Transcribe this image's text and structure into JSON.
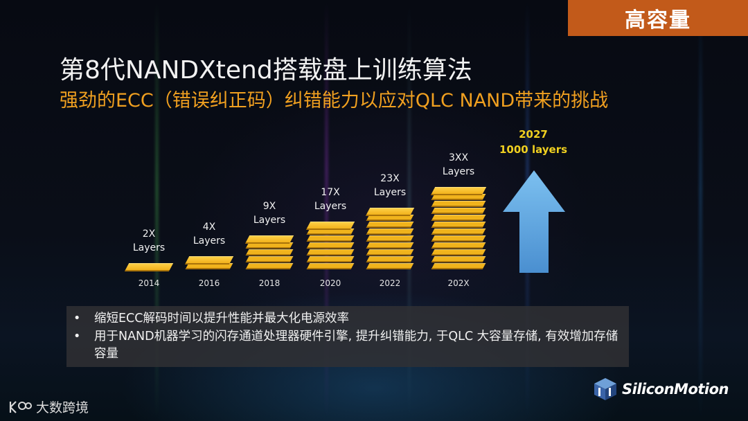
{
  "tag": {
    "text": "高容量"
  },
  "title": "第8代NANDXtend搭载盘上训练算法",
  "subtitle": "强劲的ECC（错误纠正码）纠错能力以应对QLC NAND带来的挑战",
  "chart_data": {
    "type": "bar",
    "categories": [
      "2014",
      "2016",
      "2018",
      "2020",
      "2022",
      "202X"
    ],
    "bar_labels": [
      [
        "2X",
        "Layers"
      ],
      [
        "4X",
        "Layers"
      ],
      [
        "9X",
        "Layers"
      ],
      [
        "17X",
        "Layers"
      ],
      [
        "23X",
        "Layers"
      ],
      [
        "3XX",
        "Layers"
      ]
    ],
    "plates": [
      1,
      2,
      5,
      7,
      9,
      12
    ],
    "projection": {
      "year": "2027",
      "label": "1000 layers"
    }
  },
  "bullets": [
    {
      "marker": "•",
      "text": "缩短ECC解码时间以提升性能并最大化电源效率"
    },
    {
      "marker": "•",
      "text": "用于NAND机器学习的闪存通道处理器硬件引擎, 提升纠错能力, 于QLC 大容量存储, 有效增加存储容量"
    }
  ],
  "logo": {
    "name": "SiliconMotion",
    "icon": "silicon-motion-cube-logo"
  },
  "watermark": {
    "text": "大数跨境",
    "icon": "kaudio-logo"
  },
  "colors": {
    "accent_orange": "#c25a1a",
    "subtitle_orange": "#f0a020",
    "plate_gold": "#f0b31c",
    "arrow_blue": "#6ab0e8",
    "projection_yellow": "#f0d020"
  }
}
